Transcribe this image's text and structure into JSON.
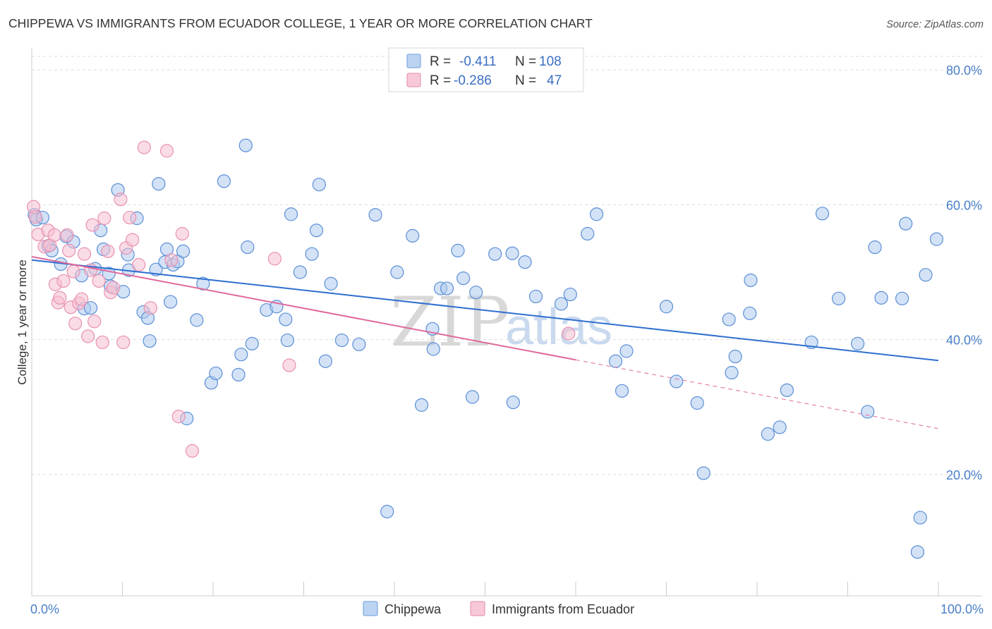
{
  "title": "CHIPPEWA VS IMMIGRANTS FROM ECUADOR COLLEGE, 1 YEAR OR MORE CORRELATION CHART",
  "source": "Source: ZipAtlas.com",
  "watermark": {
    "zip": "ZIP",
    "atlas": "atlas"
  },
  "legend": {
    "rows": [
      {
        "r_label": "R =",
        "r_value": "-0.411",
        "n_label": "N =",
        "n_value": "108",
        "color": "#9ec1ea"
      },
      {
        "r_label": "R =",
        "r_value": "-0.286",
        "n_label": "N =",
        "n_value": "47",
        "color": "#f2a7c0"
      }
    ]
  },
  "bottom_legend": [
    {
      "label": "Chippewa",
      "color": "#9ec1ea"
    },
    {
      "label": "Immigrants from Ecuador",
      "color": "#f2a7c0"
    }
  ],
  "chart_data": {
    "type": "scatter",
    "title": "CHIPPEWA VS IMMIGRANTS FROM ECUADOR COLLEGE, 1 YEAR OR MORE CORRELATION CHART",
    "xlabel": "",
    "ylabel": "College, 1 year or more",
    "xlim": [
      0,
      100
    ],
    "ylim": [
      2,
      82
    ],
    "x_tick_labels": [
      "0.0%",
      "100.0%"
    ],
    "y_ticks": [
      20,
      40,
      60,
      80
    ],
    "y_tick_labels": [
      "20.0%",
      "40.0%",
      "60.0%",
      "80.0%"
    ],
    "grid": true,
    "series": [
      {
        "name": "Chippewa",
        "color": "#5b8fd6",
        "fill": "#aecbee",
        "trend": {
          "x": [
            0,
            100
          ],
          "y": [
            51.8,
            36.9
          ],
          "color": "#2e6fd0"
        },
        "points": [
          [
            0.3,
            58.5
          ],
          [
            0.5,
            57.8
          ],
          [
            1.2,
            58.1
          ],
          [
            1.8,
            53.9
          ],
          [
            2.2,
            53.2
          ],
          [
            3.2,
            51.2
          ],
          [
            3.8,
            55.3
          ],
          [
            4.6,
            54.5
          ],
          [
            5.5,
            49.5
          ],
          [
            5.8,
            44.6
          ],
          [
            6.5,
            44.7
          ],
          [
            7.0,
            50.5
          ],
          [
            7.6,
            56.2
          ],
          [
            7.9,
            53.4
          ],
          [
            8.5,
            49.8
          ],
          [
            8.7,
            47.9
          ],
          [
            9.5,
            62.2
          ],
          [
            10.1,
            47.1
          ],
          [
            10.7,
            50.3
          ],
          [
            10.6,
            52.6
          ],
          [
            11.6,
            58.0
          ],
          [
            12.3,
            44.1
          ],
          [
            12.8,
            43.2
          ],
          [
            13.0,
            39.8
          ],
          [
            13.7,
            50.4
          ],
          [
            14.0,
            63.1
          ],
          [
            14.7,
            51.5
          ],
          [
            14.9,
            53.4
          ],
          [
            15.3,
            45.6
          ],
          [
            15.6,
            51.1
          ],
          [
            16.1,
            51.6
          ],
          [
            16.7,
            53.1
          ],
          [
            17.1,
            28.3
          ],
          [
            18.2,
            42.9
          ],
          [
            18.9,
            48.3
          ],
          [
            19.8,
            33.6
          ],
          [
            20.3,
            35.0
          ],
          [
            21.2,
            63.5
          ],
          [
            22.8,
            34.8
          ],
          [
            23.1,
            37.8
          ],
          [
            23.6,
            68.8
          ],
          [
            23.8,
            53.7
          ],
          [
            24.3,
            39.4
          ],
          [
            25.9,
            44.4
          ],
          [
            27.0,
            44.9
          ],
          [
            28.0,
            43.0
          ],
          [
            28.2,
            39.9
          ],
          [
            28.6,
            58.6
          ],
          [
            29.6,
            50.0
          ],
          [
            30.9,
            52.7
          ],
          [
            31.4,
            56.2
          ],
          [
            31.7,
            63.0
          ],
          [
            32.4,
            36.8
          ],
          [
            33.0,
            48.3
          ],
          [
            34.2,
            39.9
          ],
          [
            36.1,
            39.3
          ],
          [
            37.9,
            58.5
          ],
          [
            39.2,
            14.5
          ],
          [
            40.3,
            50.0
          ],
          [
            42.0,
            55.4
          ],
          [
            43.0,
            30.3
          ],
          [
            44.2,
            41.6
          ],
          [
            44.3,
            38.6
          ],
          [
            45.1,
            47.6
          ],
          [
            45.8,
            47.6
          ],
          [
            47.0,
            53.2
          ],
          [
            47.6,
            49.1
          ],
          [
            48.6,
            31.5
          ],
          [
            49.0,
            47.0
          ],
          [
            51.1,
            52.7
          ],
          [
            53.0,
            52.8
          ],
          [
            53.1,
            30.7
          ],
          [
            54.4,
            51.5
          ],
          [
            55.6,
            46.4
          ],
          [
            58.4,
            45.3
          ],
          [
            59.4,
            46.7
          ],
          [
            61.3,
            55.7
          ],
          [
            62.3,
            58.6
          ],
          [
            64.4,
            36.8
          ],
          [
            65.1,
            32.4
          ],
          [
            65.6,
            38.3
          ],
          [
            70.0,
            44.9
          ],
          [
            71.1,
            33.8
          ],
          [
            73.4,
            30.6
          ],
          [
            74.1,
            20.2
          ],
          [
            76.9,
            43.0
          ],
          [
            77.2,
            35.1
          ],
          [
            77.6,
            37.5
          ],
          [
            79.2,
            43.9
          ],
          [
            79.3,
            48.8
          ],
          [
            81.2,
            26.0
          ],
          [
            82.5,
            27.0
          ],
          [
            83.3,
            32.5
          ],
          [
            86.0,
            39.6
          ],
          [
            87.2,
            58.7
          ],
          [
            89.0,
            46.1
          ],
          [
            91.1,
            39.4
          ],
          [
            92.2,
            29.3
          ],
          [
            93.0,
            53.7
          ],
          [
            93.7,
            46.2
          ],
          [
            96.0,
            46.1
          ],
          [
            96.4,
            57.2
          ],
          [
            98.0,
            13.6
          ],
          [
            97.7,
            8.5
          ],
          [
            98.6,
            49.6
          ],
          [
            99.8,
            54.9
          ]
        ]
      },
      {
        "name": "Immigrants from Ecuador",
        "color": "#e891b1",
        "fill": "#f6c0d2",
        "trend": {
          "x": [
            0,
            60
          ],
          "y": [
            52.3,
            37.0
          ],
          "dashed_extension": {
            "x": [
              60,
              100
            ],
            "y": [
              37.0,
              26.8
            ]
          },
          "color": "#e0689a"
        },
        "points": [
          [
            0.2,
            59.7
          ],
          [
            0.4,
            58.2
          ],
          [
            0.7,
            55.6
          ],
          [
            1.4,
            53.8
          ],
          [
            1.8,
            56.2
          ],
          [
            2.0,
            54.0
          ],
          [
            2.5,
            55.5
          ],
          [
            2.6,
            48.2
          ],
          [
            2.9,
            45.5
          ],
          [
            3.1,
            46.2
          ],
          [
            3.5,
            48.7
          ],
          [
            3.9,
            55.5
          ],
          [
            4.1,
            53.2
          ],
          [
            4.3,
            44.8
          ],
          [
            4.6,
            50.1
          ],
          [
            4.8,
            42.4
          ],
          [
            5.2,
            45.4
          ],
          [
            5.5,
            46.0
          ],
          [
            5.8,
            52.7
          ],
          [
            6.2,
            40.5
          ],
          [
            6.5,
            50.3
          ],
          [
            6.7,
            57.0
          ],
          [
            6.9,
            42.7
          ],
          [
            7.4,
            48.7
          ],
          [
            7.8,
            39.6
          ],
          [
            8.0,
            58.0
          ],
          [
            8.4,
            53.1
          ],
          [
            8.7,
            47.0
          ],
          [
            9.0,
            47.7
          ],
          [
            9.8,
            60.8
          ],
          [
            10.1,
            39.6
          ],
          [
            10.4,
            53.6
          ],
          [
            10.8,
            58.1
          ],
          [
            11.1,
            54.8
          ],
          [
            11.8,
            51.1
          ],
          [
            12.4,
            68.5
          ],
          [
            13.1,
            44.7
          ],
          [
            14.9,
            68.0
          ],
          [
            15.4,
            51.8
          ],
          [
            16.2,
            28.6
          ],
          [
            16.6,
            55.7
          ],
          [
            17.7,
            23.5
          ],
          [
            26.8,
            52.0
          ],
          [
            28.4,
            36.2
          ],
          [
            59.2,
            40.9
          ]
        ]
      }
    ]
  }
}
